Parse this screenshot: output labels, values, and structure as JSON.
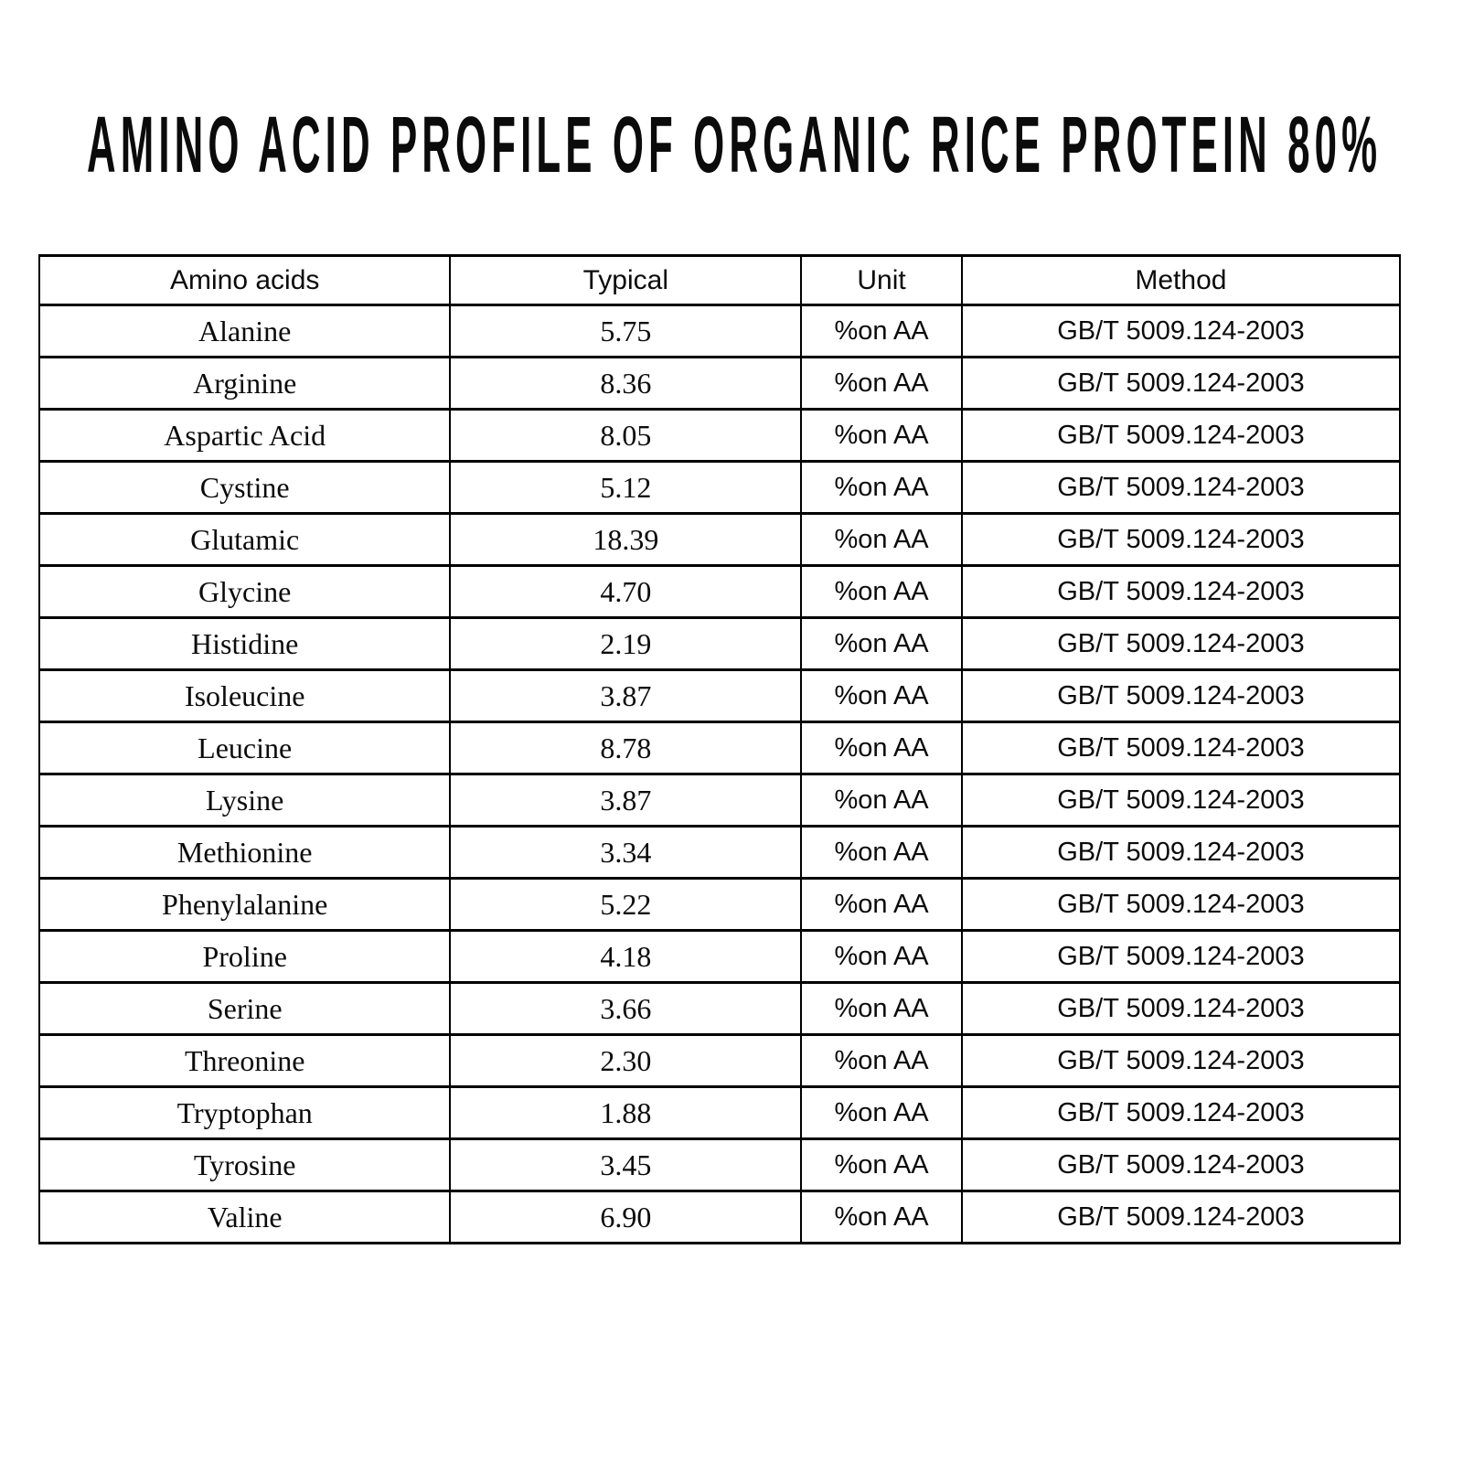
{
  "title": "AMINO ACID PROFILE OF ORGANIC RICE PROTEIN 80%",
  "table": {
    "headers": {
      "amino_acid": "Amino acids",
      "typical": "Typical",
      "unit": "Unit",
      "method": "Method"
    },
    "rows": [
      {
        "amino_acid": "Alanine",
        "typical": "5.75",
        "unit": "%on AA",
        "method": "GB/T 5009.124-2003"
      },
      {
        "amino_acid": "Arginine",
        "typical": "8.36",
        "unit": "%on AA",
        "method": "GB/T 5009.124-2003"
      },
      {
        "amino_acid": "Aspartic Acid",
        "typical": "8.05",
        "unit": "%on AA",
        "method": "GB/T 5009.124-2003"
      },
      {
        "amino_acid": "Cystine",
        "typical": "5.12",
        "unit": "%on AA",
        "method": "GB/T 5009.124-2003"
      },
      {
        "amino_acid": "Glutamic",
        "typical": "18.39",
        "unit": "%on AA",
        "method": "GB/T 5009.124-2003"
      },
      {
        "amino_acid": "Glycine",
        "typical": "4.70",
        "unit": "%on AA",
        "method": "GB/T 5009.124-2003"
      },
      {
        "amino_acid": "Histidine",
        "typical": "2.19",
        "unit": "%on AA",
        "method": "GB/T 5009.124-2003"
      },
      {
        "amino_acid": "Isoleucine",
        "typical": "3.87",
        "unit": "%on AA",
        "method": "GB/T 5009.124-2003"
      },
      {
        "amino_acid": "Leucine",
        "typical": "8.78",
        "unit": "%on AA",
        "method": "GB/T 5009.124-2003"
      },
      {
        "amino_acid": "Lysine",
        "typical": "3.87",
        "unit": "%on AA",
        "method": "GB/T 5009.124-2003"
      },
      {
        "amino_acid": "Methionine",
        "typical": "3.34",
        "unit": "%on AA",
        "method": "GB/T 5009.124-2003"
      },
      {
        "amino_acid": "Phenylalanine",
        "typical": "5.22",
        "unit": "%on AA",
        "method": "GB/T 5009.124-2003"
      },
      {
        "amino_acid": "Proline",
        "typical": "4.18",
        "unit": "%on AA",
        "method": "GB/T 5009.124-2003"
      },
      {
        "amino_acid": "Serine",
        "typical": "3.66",
        "unit": "%on AA",
        "method": "GB/T 5009.124-2003"
      },
      {
        "amino_acid": "Threonine",
        "typical": "2.30",
        "unit": "%on AA",
        "method": "GB/T 5009.124-2003"
      },
      {
        "amino_acid": "Tryptophan",
        "typical": "1.88",
        "unit": "%on AA",
        "method": "GB/T 5009.124-2003"
      },
      {
        "amino_acid": "Tyrosine",
        "typical": "3.45",
        "unit": "%on AA",
        "method": "GB/T 5009.124-2003"
      },
      {
        "amino_acid": "Valine",
        "typical": "6.90",
        "unit": "%on AA",
        "method": "GB/T 5009.124-2003"
      }
    ]
  },
  "colors": {
    "text": "#0b0b0b",
    "border": "#000000",
    "background": "#ffffff"
  }
}
